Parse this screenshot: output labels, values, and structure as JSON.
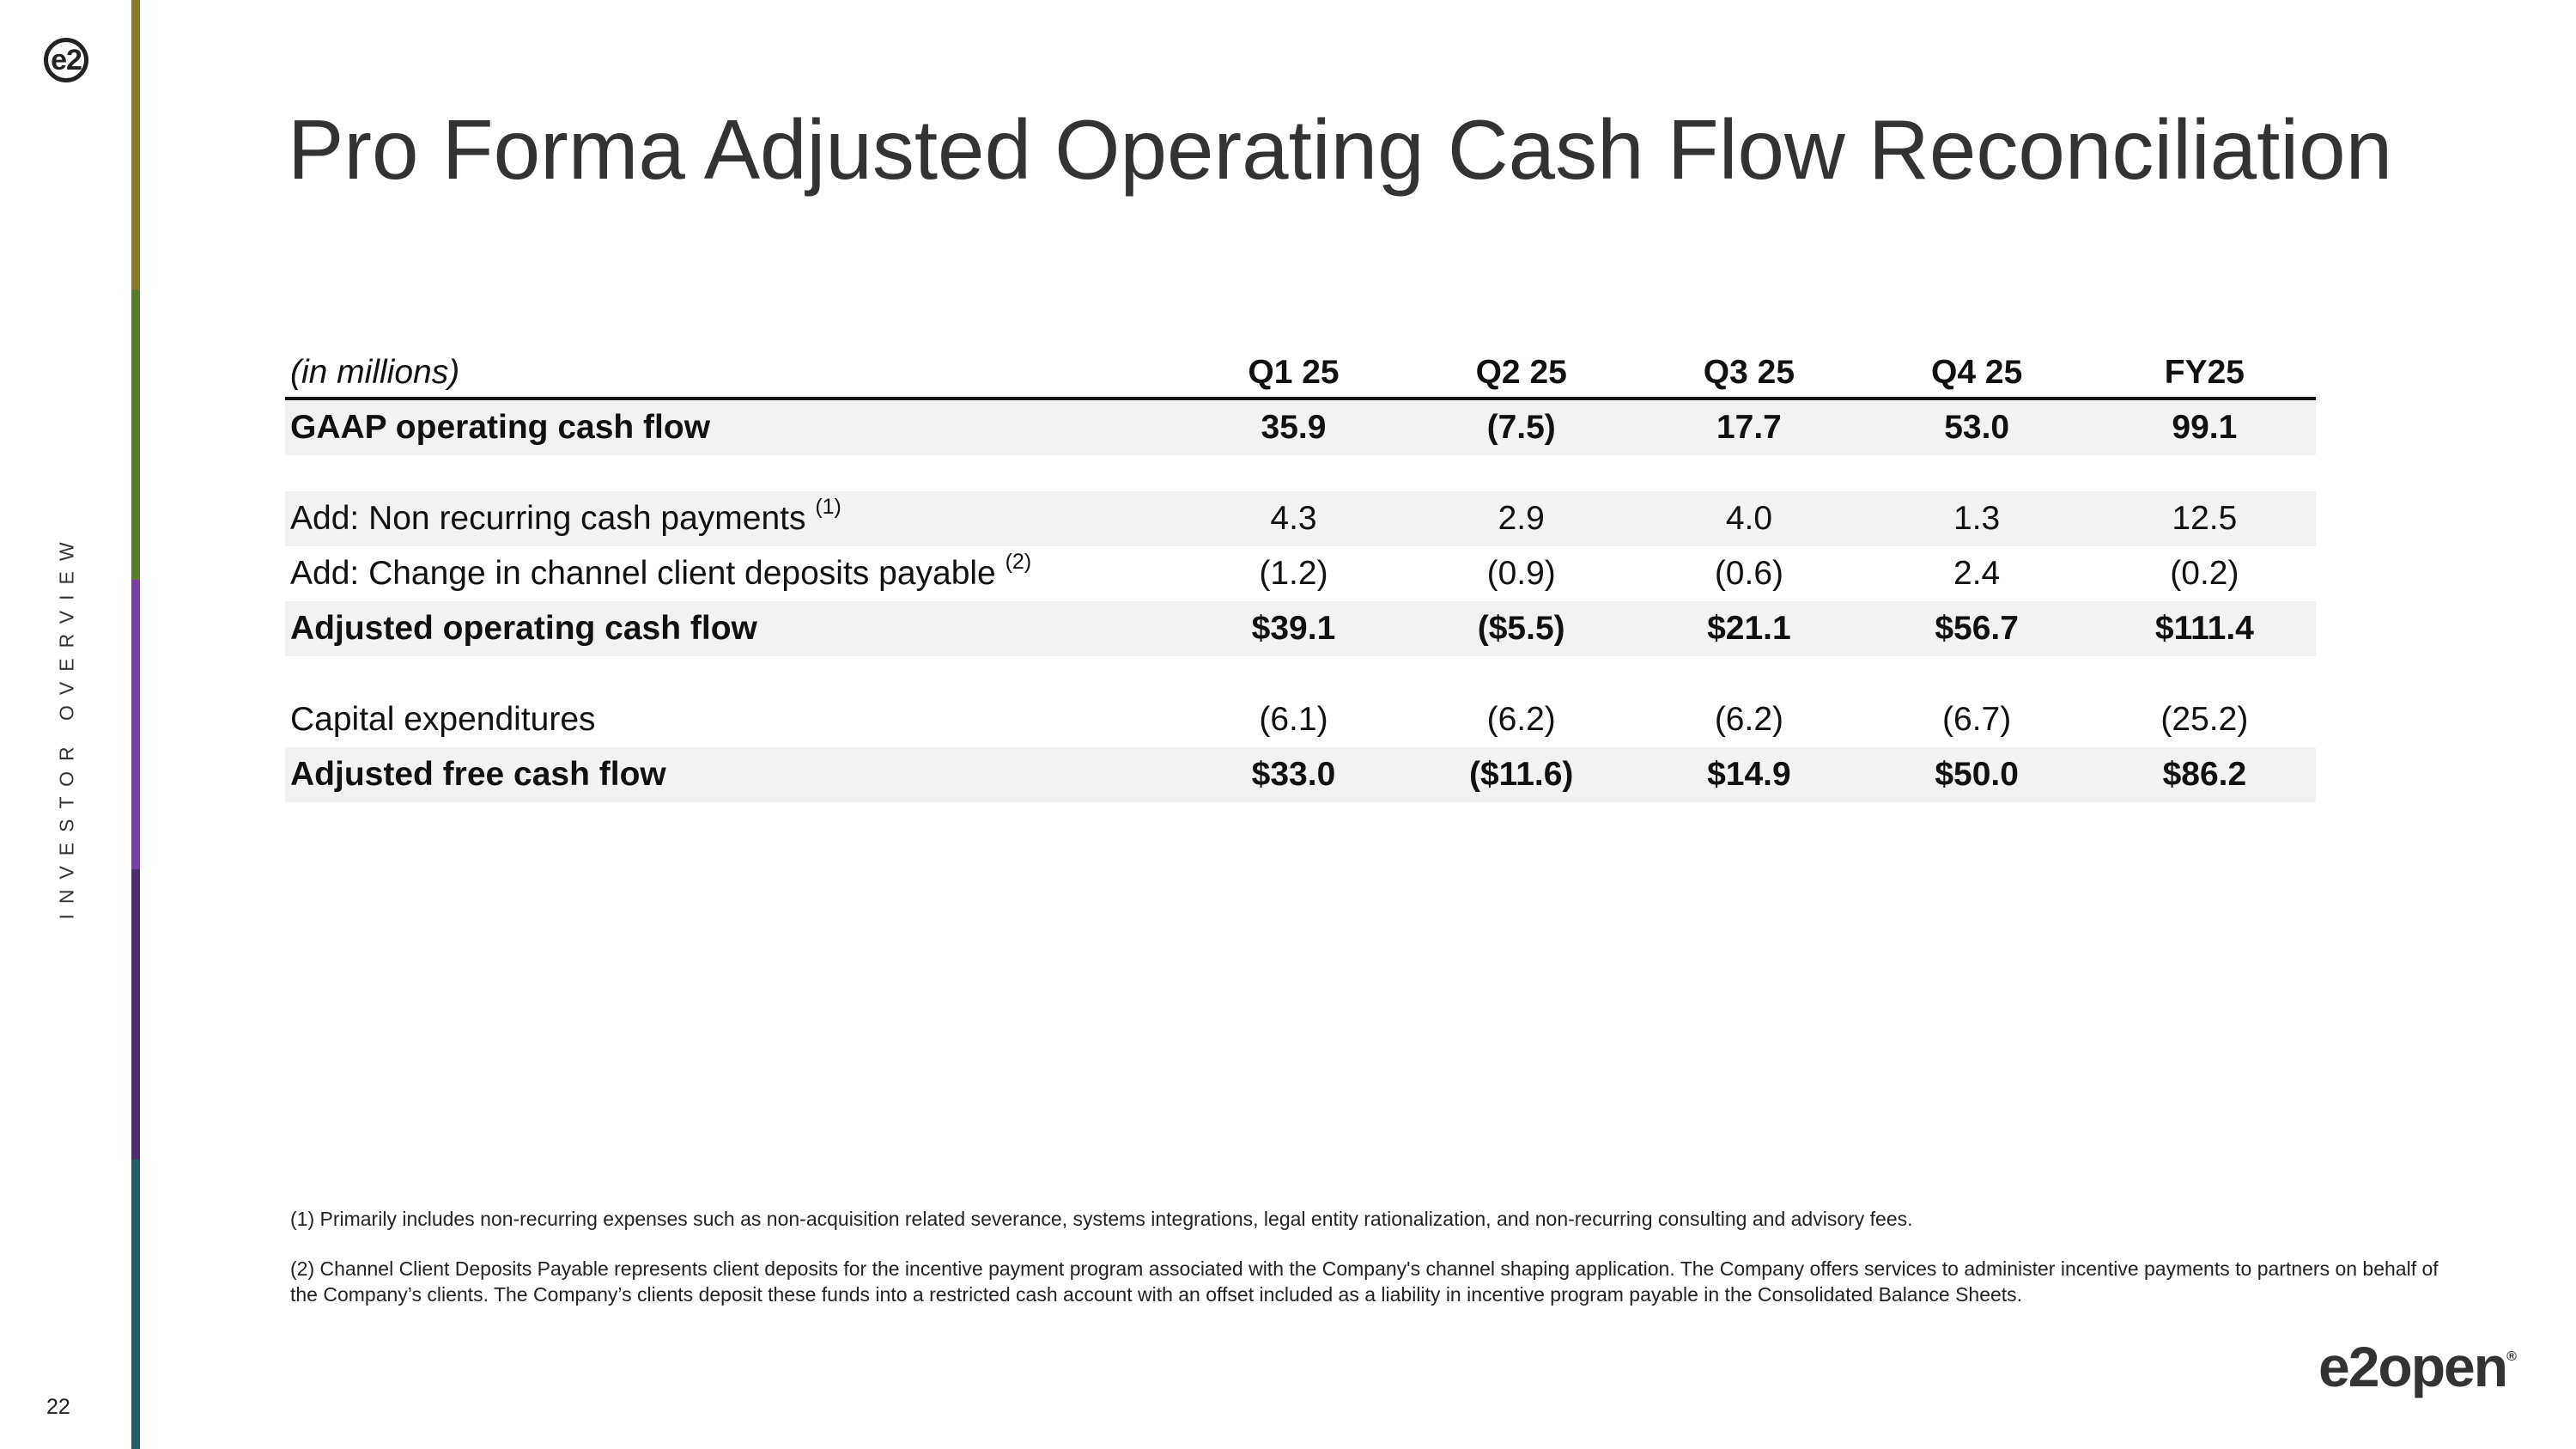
{
  "header": {
    "logo_text": "e2",
    "title": "Pro Forma Adjusted Operating Cash Flow Reconciliation"
  },
  "sidebar": {
    "label": "INVESTOR OVERVIEW",
    "bar_colors": [
      "#8a7a2e",
      "#5c7a2e",
      "#7a3fa6",
      "#4a2f6e",
      "#1f5c66"
    ]
  },
  "table": {
    "units_label": "(in millions)",
    "columns": [
      "Q1 25",
      "Q2 25",
      "Q3 25",
      "Q4 25",
      "FY25"
    ],
    "rows": {
      "gaap": {
        "label": "GAAP operating cash flow",
        "note": "",
        "values": [
          "35.9",
          "(7.5)",
          "17.7",
          "53.0",
          "99.1"
        ]
      },
      "nonrec": {
        "label": "Add: Non recurring cash payments",
        "note": "(1)",
        "values": [
          "4.3",
          "2.9",
          "4.0",
          "1.3",
          "12.5"
        ]
      },
      "deposits": {
        "label": "Add: Change in channel client deposits payable",
        "note": "(2)",
        "values": [
          "(1.2)",
          "(0.9)",
          "(0.6)",
          "2.4",
          "(0.2)"
        ]
      },
      "adj_ocf": {
        "label": "Adjusted operating cash flow",
        "note": "",
        "values": [
          "$39.1",
          "($5.5)",
          "$21.1",
          "$56.7",
          "$111.4"
        ]
      },
      "capex": {
        "label": "Capital expenditures",
        "note": "",
        "values": [
          "(6.1)",
          "(6.2)",
          "(6.2)",
          "(6.7)",
          "(25.2)"
        ]
      },
      "adj_fcf": {
        "label": "Adjusted free cash flow",
        "note": "",
        "values": [
          "$33.0",
          "($11.6)",
          "$14.9",
          "$50.0",
          "$86.2"
        ]
      }
    }
  },
  "footnotes": [
    "(1)  Primarily includes non-recurring expenses such as non-acquisition related severance, systems integrations, legal entity rationalization, and non-recurring consulting and advisory fees.",
    "(2)   Channel Client Deposits Payable represents client deposits for the incentive payment program associated with the Company's channel shaping application. The Company offers services to administer incentive payments to partners on behalf of the Company’s clients. The Company’s clients deposit these funds into a restricted cash account with an offset included as a liability in incentive program payable in the Consolidated Balance Sheets."
  ],
  "footer": {
    "page_number": "22",
    "brand": "e2open",
    "brand_mark": "®"
  }
}
